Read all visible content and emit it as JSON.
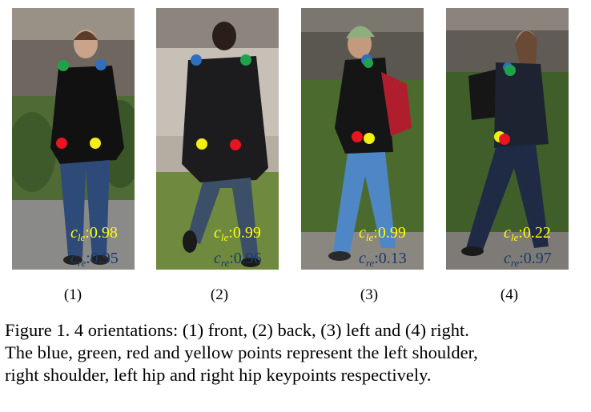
{
  "panels": [
    {
      "label": "(1)",
      "le_label": "c",
      "le_sub": "le",
      "le_value": ":0.98",
      "re_label": "c",
      "re_sub": "re",
      "re_value": ":0.95",
      "orientation": "front",
      "colors": {
        "sky": "#9a9186",
        "wall": "#6f675f",
        "ground": "#5c6a3a",
        "coat": "#111111",
        "pants": "#2e4a78"
      }
    },
    {
      "label": "(2)",
      "le_label": "c",
      "le_sub": "le",
      "le_value": ":0.99",
      "re_label": "c",
      "re_sub": "re",
      "re_value": ":0.96",
      "orientation": "back",
      "colors": {
        "sky": "#c7c0b6",
        "wall": "#8b857d",
        "ground": "#6f8a3e",
        "coat": "#1c1c1e",
        "pants": "#3c4f68"
      }
    },
    {
      "label": "(3)",
      "le_label": "c",
      "le_sub": "le",
      "le_value": ":0.99",
      "re_label": "c",
      "re_sub": "re",
      "re_value": ":0.13",
      "orientation": "left",
      "colors": {
        "sky": "#7c776e",
        "wall": "#5a5650",
        "ground": "#4b6b2e",
        "coat": "#151515",
        "pants": "#4f86c6"
      }
    },
    {
      "label": "(4)",
      "le_label": "c",
      "le_sub": "le",
      "le_value": ":0.22",
      "re_label": "c",
      "re_sub": "re",
      "re_value": ":0.97",
      "orientation": "right",
      "colors": {
        "sky": "#8a847c",
        "wall": "#615b55",
        "ground": "#3f5e2a",
        "coat": "#1d2330",
        "pants": "#1f2a44"
      }
    }
  ],
  "keypoint_colors": {
    "left_shoulder": "#2f6fbf",
    "right_shoulder": "#1fa24a",
    "left_hip": "#e8141e",
    "right_hip": "#f2ef12"
  },
  "caption": {
    "line1": "Figure 1. 4 orientations: (1) front, (2) back, (3) left and (4) right.",
    "line2": "The blue, green, red and yellow points represent the left shoulder,",
    "line3": "right shoulder, left hip and right hip keypoints respectively."
  }
}
